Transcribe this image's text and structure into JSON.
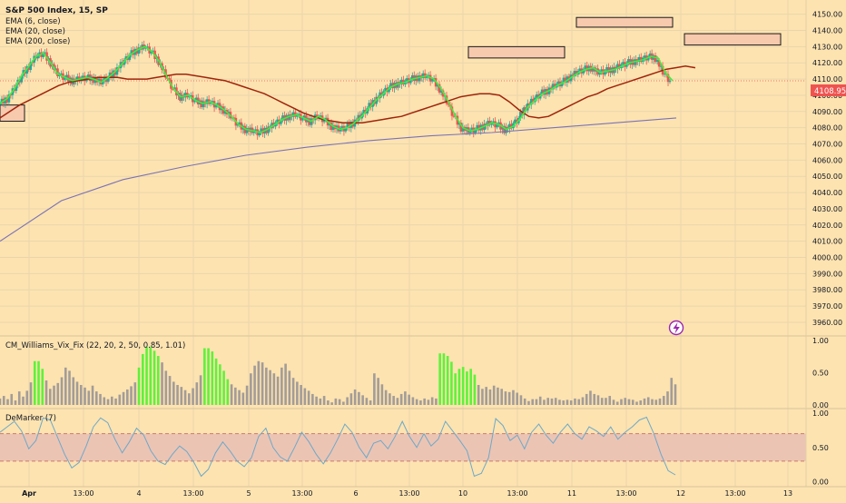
{
  "legend": {
    "symbol": "S&P 500 Index, 15, SP",
    "ema6": "EMA (6, close)",
    "ema20": "EMA (20, close)",
    "ema200": "EMA (200, close)"
  },
  "colors": {
    "bg": "#fde3b0",
    "up": "#26a69a",
    "down": "#ef5350",
    "ema6": "#3cf03c",
    "ema20": "#a0240c",
    "ema200": "#7b72b6",
    "vix_green": "#5ff23a",
    "vix_gray": "#a39c98",
    "demarker": "#6da9c8",
    "demarker_band": "#ecc4b4",
    "price_tag": "#ef5350",
    "zone_fill": "#f7c9ad"
  },
  "price_tag": "4108.95",
  "lightning_icon": "lightning-icon",
  "indicators": {
    "vix": {
      "label": "CM_Williams_Vix_Fix (22, 20, 2, 50, 0.85, 1.01)",
      "ticks": [
        "1.00",
        "0.50",
        "0.00"
      ]
    },
    "demarker": {
      "label": "DeMarker (7)",
      "ticks": [
        "1.00",
        "0.50",
        "0.00"
      ]
    }
  },
  "chart_data": [
    {
      "type": "candlestick",
      "title": "S&P 500 Index, 15, SP",
      "ylim": [
        3950,
        4160
      ],
      "y_ticks": [
        4150,
        4140,
        4130,
        4120,
        4110,
        4100,
        4090,
        4080,
        4070,
        4060,
        4050,
        4040,
        4030,
        4020,
        4010,
        4000,
        3990,
        3980,
        3970,
        3960
      ],
      "y_tick_labels": [
        "4150.00",
        "4140.00",
        "4130.00",
        "4120.00",
        "4110.00",
        "4100.00",
        "4090.00",
        "4080.00",
        "4070.00",
        "4060.00",
        "4050.00",
        "4040.00",
        "4030.00",
        "4020.00",
        "4010.00",
        "4000.00",
        "3990.00",
        "3980.00",
        "3970.00",
        "3960.00"
      ],
      "x_labels": [
        "Apr",
        "13:00",
        "4",
        "13:00",
        "5",
        "13:00",
        "6",
        "13:00",
        "10",
        "13:00",
        "11",
        "13:00",
        "12",
        "13:00",
        "13"
      ],
      "last_price": 4108.95,
      "price_path": [
        4095,
        4098,
        4104,
        4112,
        4118,
        4124,
        4126,
        4120,
        4113,
        4111,
        4109,
        4110,
        4111,
        4110,
        4108,
        4111,
        4115,
        4120,
        4125,
        4128,
        4130,
        4127,
        4121,
        4112,
        4104,
        4099,
        4100,
        4097,
        4095,
        4096,
        4094,
        4091,
        4087,
        4082,
        4079,
        4078,
        4077,
        4079,
        4082,
        4085,
        4087,
        4088,
        4086,
        4084,
        4087,
        4085,
        4081,
        4079,
        4080,
        4083,
        4087,
        4092,
        4097,
        4101,
        4105,
        4107,
        4108,
        4110,
        4111,
        4112,
        4110,
        4104,
        4096,
        4087,
        4080,
        4078,
        4079,
        4081,
        4083,
        4082,
        4079,
        4081,
        4086,
        4093,
        4097,
        4101,
        4103,
        4106,
        4108,
        4111,
        4114,
        4116,
        4117,
        4114,
        4115,
        4116,
        4118,
        4120,
        4121,
        4122,
        4124,
        4123,
        4114,
        4109
      ],
      "ema20": [
        4086,
        4090,
        4094,
        4097,
        4100,
        4103,
        4106,
        4108,
        4109,
        4110,
        4111,
        4111,
        4111,
        4110,
        4110,
        4110,
        4111,
        4112,
        4113,
        4113,
        4112,
        4111,
        4110,
        4109,
        4107,
        4105,
        4103,
        4101,
        4098,
        4095,
        4092,
        4089,
        4087,
        4085,
        4084,
        4083,
        4083,
        4083,
        4084,
        4085,
        4086,
        4087,
        4089,
        4091,
        4093,
        4095,
        4097,
        4099,
        4100,
        4101,
        4101,
        4100,
        4096,
        4091,
        4087,
        4086,
        4087,
        4090,
        4093,
        4096,
        4099,
        4101,
        4104,
        4106,
        4108,
        4110,
        4112,
        4114,
        4116,
        4117,
        4118,
        4117
      ],
      "ema200": [
        4010,
        4035,
        4048,
        4056,
        4063,
        4068,
        4072,
        4075,
        4077,
        4080,
        4083,
        4086
      ],
      "resistance_zones": [
        {
          "from_date": "Apr 10",
          "to_date": "Apr 11",
          "low": 4123,
          "high": 4130
        },
        {
          "from_date": "Apr 11",
          "to_date": "Apr 12",
          "low": 4142,
          "high": 4148
        },
        {
          "from_date": "Apr 12",
          "to_date": "Apr 13",
          "low": 4131,
          "high": 4138
        },
        {
          "from_date": "Apr 3",
          "to_date": "Apr 3",
          "low": 4084,
          "high": 4094
        }
      ]
    },
    {
      "type": "bar",
      "title": "CM_Williams_Vix_Fix (22, 20, 2, 50, 0.85, 1.01)",
      "ylim": [
        0,
        1
      ],
      "values": [
        0.1,
        0.14,
        0.09,
        0.17,
        0.07,
        0.21,
        0.13,
        0.22,
        0.35,
        0.68,
        0.68,
        0.56,
        0.38,
        0.25,
        0.3,
        0.34,
        0.43,
        0.58,
        0.53,
        0.43,
        0.36,
        0.31,
        0.27,
        0.22,
        0.3,
        0.21,
        0.17,
        0.12,
        0.09,
        0.13,
        0.1,
        0.16,
        0.2,
        0.24,
        0.29,
        0.35,
        0.58,
        0.79,
        0.9,
        0.9,
        0.84,
        0.76,
        0.66,
        0.53,
        0.45,
        0.36,
        0.31,
        0.28,
        0.23,
        0.18,
        0.26,
        0.35,
        0.46,
        0.88,
        0.88,
        0.83,
        0.72,
        0.63,
        0.53,
        0.4,
        0.32,
        0.27,
        0.23,
        0.19,
        0.3,
        0.49,
        0.61,
        0.68,
        0.66,
        0.58,
        0.54,
        0.49,
        0.44,
        0.58,
        0.64,
        0.53,
        0.42,
        0.36,
        0.31,
        0.26,
        0.22,
        0.17,
        0.13,
        0.1,
        0.14,
        0.07,
        0.04,
        0.1,
        0.09,
        0.05,
        0.12,
        0.18,
        0.24,
        0.2,
        0.15,
        0.11,
        0.07,
        0.49,
        0.42,
        0.32,
        0.23,
        0.18,
        0.14,
        0.11,
        0.17,
        0.21,
        0.16,
        0.12,
        0.09,
        0.07,
        0.1,
        0.08,
        0.12,
        0.1,
        0.8,
        0.8,
        0.76,
        0.67,
        0.49,
        0.56,
        0.59,
        0.52,
        0.56,
        0.47,
        0.31,
        0.25,
        0.28,
        0.24,
        0.3,
        0.27,
        0.25,
        0.21,
        0.2,
        0.23,
        0.19,
        0.15,
        0.1,
        0.06,
        0.09,
        0.09,
        0.13,
        0.08,
        0.11,
        0.1,
        0.11,
        0.08,
        0.07,
        0.08,
        0.07,
        0.1,
        0.09,
        0.12,
        0.17,
        0.22,
        0.17,
        0.15,
        0.11,
        0.11,
        0.14,
        0.08,
        0.05,
        0.09,
        0.11,
        0.09,
        0.08,
        0.05,
        0.07,
        0.1,
        0.12,
        0.09,
        0.08,
        0.1,
        0.14,
        0.21,
        0.42,
        0.32
      ],
      "highlight": [
        9,
        10,
        11,
        36,
        37,
        38,
        39,
        40,
        41,
        53,
        54,
        55,
        56,
        57,
        58,
        59,
        114,
        115,
        116,
        117,
        118,
        119,
        120,
        121,
        122,
        123,
        178,
        179,
        180
      ],
      "ticks": [
        "1.00",
        "0.50",
        "0.00"
      ]
    },
    {
      "type": "line",
      "title": "DeMarker (7)",
      "ylim": [
        0,
        1
      ],
      "band": [
        0.3,
        0.7
      ],
      "values": [
        0.72,
        0.8,
        0.88,
        0.74,
        0.48,
        0.6,
        0.93,
        0.9,
        0.65,
        0.4,
        0.2,
        0.28,
        0.52,
        0.8,
        0.93,
        0.86,
        0.62,
        0.42,
        0.58,
        0.78,
        0.68,
        0.45,
        0.3,
        0.25,
        0.4,
        0.52,
        0.44,
        0.28,
        0.08,
        0.18,
        0.42,
        0.58,
        0.45,
        0.3,
        0.22,
        0.35,
        0.66,
        0.78,
        0.5,
        0.36,
        0.3,
        0.5,
        0.72,
        0.58,
        0.4,
        0.26,
        0.42,
        0.62,
        0.84,
        0.72,
        0.5,
        0.35,
        0.56,
        0.6,
        0.48,
        0.66,
        0.88,
        0.66,
        0.5,
        0.7,
        0.52,
        0.62,
        0.88,
        0.74,
        0.6,
        0.45,
        0.08,
        0.12,
        0.35,
        0.92,
        0.82,
        0.6,
        0.68,
        0.48,
        0.72,
        0.84,
        0.68,
        0.56,
        0.72,
        0.84,
        0.7,
        0.62,
        0.8,
        0.74,
        0.66,
        0.8,
        0.62,
        0.72,
        0.8,
        0.9,
        0.94,
        0.7,
        0.4,
        0.16,
        0.1
      ],
      "ticks": [
        "1.00",
        "0.50",
        "0.00"
      ]
    }
  ]
}
